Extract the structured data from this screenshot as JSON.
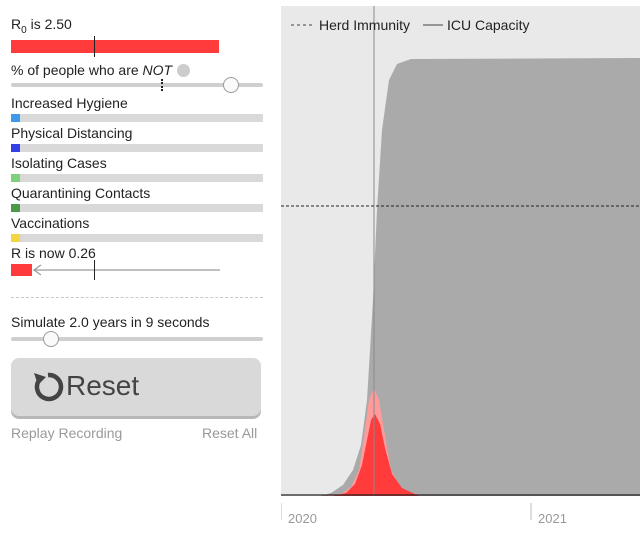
{
  "controls": {
    "r0": {
      "label_prefix": "R",
      "label_sub": "0",
      "label_suffix": " is 2.50",
      "value": 2.5
    },
    "not_protected": {
      "label_prefix": "% of people who are ",
      "label_emph": "NOT",
      "icon": "face-mask-icon"
    },
    "interventions": [
      {
        "label": "Increased Hygiene",
        "color": "#3d9be9"
      },
      {
        "label": "Physical Distancing",
        "color": "#3340e6"
      },
      {
        "label": "Isolating Cases",
        "color": "#7ed07e"
      },
      {
        "label": "Quarantining Contacts",
        "color": "#4a9a4a"
      },
      {
        "label": "Vaccinations",
        "color": "#f5d442"
      }
    ],
    "r_now": {
      "label": "R is now 0.26",
      "value": 0.26
    },
    "simulate": {
      "label": "Simulate 2.0 years in 9 seconds"
    },
    "reset_label": "Reset",
    "replay_label": "Replay Recording",
    "reset_all_label": "Reset All"
  },
  "colors": {
    "red": "#ff3b3b",
    "pink": "#ff9b9b",
    "susceptible_gray": "#aaaaaa",
    "chart_bg": "#e9e9e9"
  },
  "chart_data": {
    "type": "area",
    "legend": [
      {
        "name": "Herd Immunity",
        "style": "dashed"
      },
      {
        "name": "ICU Capacity",
        "style": "solid"
      }
    ],
    "x_ticks": [
      "2020",
      "2021"
    ]
  }
}
